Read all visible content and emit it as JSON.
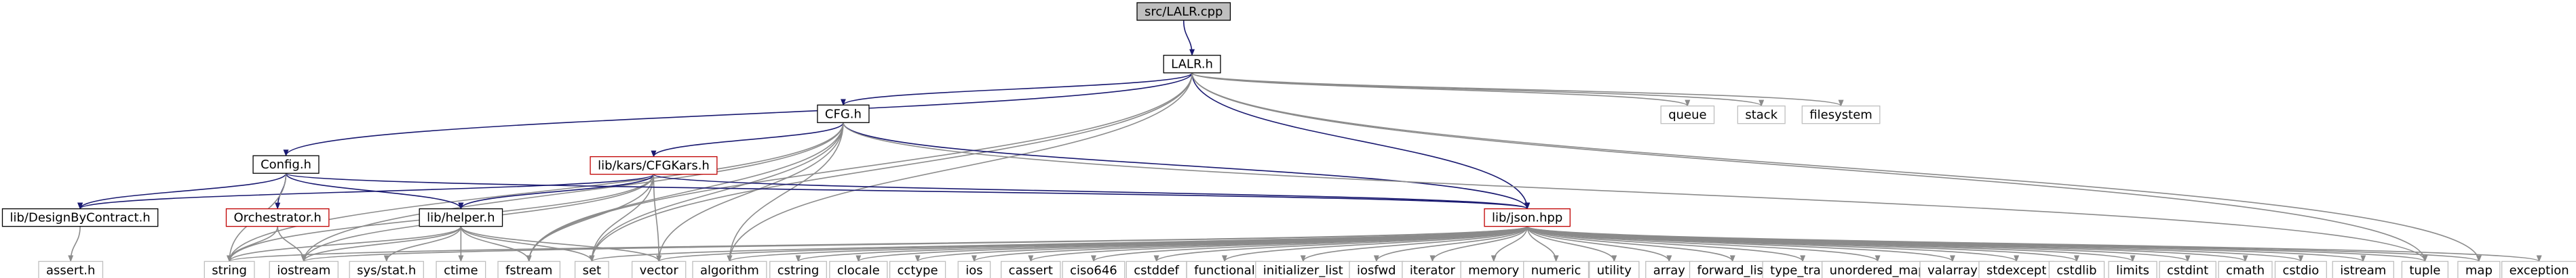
{
  "colors": {
    "root_fill": "#bfbfbf",
    "node_fill": "#ffffff",
    "node_border": "#000000",
    "missing_border": "#c00000",
    "sys_border": "#bfbfbf",
    "project_edge": "#191970",
    "system_edge": "#8b8b8b"
  },
  "nodes": [
    {
      "id": "src_lalr_cpp",
      "label": "src/LALR.cpp",
      "kind": "root"
    },
    {
      "id": "lalr_h",
      "label": "LALR.h",
      "kind": "project"
    },
    {
      "id": "cfg_h",
      "label": "CFG.h",
      "kind": "project"
    },
    {
      "id": "config_h",
      "label": "Config.h",
      "kind": "project"
    },
    {
      "id": "cfgkars_h",
      "label": "lib/kars/CFGKars.h",
      "kind": "missing"
    },
    {
      "id": "designbycontract_h",
      "label": "lib/DesignByContract.h",
      "kind": "project"
    },
    {
      "id": "orchestrator_h",
      "label": "Orchestrator.h",
      "kind": "missing"
    },
    {
      "id": "helper_h",
      "label": "lib/helper.h",
      "kind": "project"
    },
    {
      "id": "json_hpp",
      "label": "lib/json.hpp",
      "kind": "missing"
    },
    {
      "id": "assert_h",
      "label": "assert.h",
      "kind": "system"
    },
    {
      "id": "queue",
      "label": "queue",
      "kind": "system"
    },
    {
      "id": "stack",
      "label": "stack",
      "kind": "system"
    },
    {
      "id": "filesystem",
      "label": "filesystem",
      "kind": "system"
    },
    {
      "id": "string",
      "label": "string",
      "kind": "system"
    },
    {
      "id": "iostream",
      "label": "iostream",
      "kind": "system"
    },
    {
      "id": "sys_stat_h",
      "label": "sys/stat.h",
      "kind": "system"
    },
    {
      "id": "ctime",
      "label": "ctime",
      "kind": "system"
    },
    {
      "id": "fstream",
      "label": "fstream",
      "kind": "system"
    },
    {
      "id": "set",
      "label": "set",
      "kind": "system"
    },
    {
      "id": "vector",
      "label": "vector",
      "kind": "system"
    },
    {
      "id": "algorithm",
      "label": "algorithm",
      "kind": "system"
    },
    {
      "id": "cstring",
      "label": "cstring",
      "kind": "system"
    },
    {
      "id": "clocale",
      "label": "clocale",
      "kind": "system"
    },
    {
      "id": "cctype",
      "label": "cctype",
      "kind": "system"
    },
    {
      "id": "ios",
      "label": "ios",
      "kind": "system"
    },
    {
      "id": "cassert",
      "label": "cassert",
      "kind": "system"
    },
    {
      "id": "ciso646",
      "label": "ciso646",
      "kind": "system"
    },
    {
      "id": "cstddef",
      "label": "cstddef",
      "kind": "system"
    },
    {
      "id": "functional",
      "label": "functional",
      "kind": "system"
    },
    {
      "id": "initializer_list",
      "label": "initializer_list",
      "kind": "system"
    },
    {
      "id": "iosfwd",
      "label": "iosfwd",
      "kind": "system"
    },
    {
      "id": "iterator",
      "label": "iterator",
      "kind": "system"
    },
    {
      "id": "memory",
      "label": "memory",
      "kind": "system"
    },
    {
      "id": "numeric",
      "label": "numeric",
      "kind": "system"
    },
    {
      "id": "utility",
      "label": "utility",
      "kind": "system"
    },
    {
      "id": "array",
      "label": "array",
      "kind": "system"
    },
    {
      "id": "forward_list",
      "label": "forward_list",
      "kind": "system"
    },
    {
      "id": "type_traits",
      "label": "type_traits",
      "kind": "system"
    },
    {
      "id": "unordered_map",
      "label": "unordered_map",
      "kind": "system"
    },
    {
      "id": "valarray",
      "label": "valarray",
      "kind": "system"
    },
    {
      "id": "stdexcept",
      "label": "stdexcept",
      "kind": "system"
    },
    {
      "id": "cstdlib",
      "label": "cstdlib",
      "kind": "system"
    },
    {
      "id": "limits",
      "label": "limits",
      "kind": "system"
    },
    {
      "id": "cstdint",
      "label": "cstdint",
      "kind": "system"
    },
    {
      "id": "cmath",
      "label": "cmath",
      "kind": "system"
    },
    {
      "id": "cstdio",
      "label": "cstdio",
      "kind": "system"
    },
    {
      "id": "istream",
      "label": "istream",
      "kind": "system"
    },
    {
      "id": "tuple",
      "label": "tuple",
      "kind": "system"
    },
    {
      "id": "map",
      "label": "map",
      "kind": "system"
    },
    {
      "id": "exception",
      "label": "exception",
      "kind": "system"
    }
  ],
  "edges": [
    [
      "src_lalr_cpp",
      "lalr_h"
    ],
    [
      "lalr_h",
      "cfg_h"
    ],
    [
      "lalr_h",
      "config_h"
    ],
    [
      "lalr_h",
      "json_hpp"
    ],
    [
      "lalr_h",
      "queue"
    ],
    [
      "lalr_h",
      "stack"
    ],
    [
      "lalr_h",
      "filesystem"
    ],
    [
      "lalr_h",
      "fstream"
    ],
    [
      "lalr_h",
      "set"
    ],
    [
      "lalr_h",
      "algorithm"
    ],
    [
      "lalr_h",
      "tuple"
    ],
    [
      "lalr_h",
      "map"
    ],
    [
      "cfg_h",
      "cfgkars_h"
    ],
    [
      "cfg_h",
      "json_hpp"
    ],
    [
      "cfg_h",
      "string"
    ],
    [
      "cfg_h",
      "iostream"
    ],
    [
      "cfg_h",
      "fstream"
    ],
    [
      "cfg_h",
      "set"
    ],
    [
      "cfg_h",
      "vector"
    ],
    [
      "cfg_h",
      "algorithm"
    ],
    [
      "cfg_h",
      "tuple"
    ],
    [
      "cfgkars_h",
      "designbycontract_h"
    ],
    [
      "cfgkars_h",
      "helper_h"
    ],
    [
      "cfgkars_h",
      "json_hpp"
    ],
    [
      "cfgkars_h",
      "string"
    ],
    [
      "cfgkars_h",
      "iostream"
    ],
    [
      "cfgkars_h",
      "fstream"
    ],
    [
      "cfgkars_h",
      "set"
    ],
    [
      "cfgkars_h",
      "vector"
    ],
    [
      "config_h",
      "designbycontract_h"
    ],
    [
      "config_h",
      "orchestrator_h"
    ],
    [
      "config_h",
      "helper_h"
    ],
    [
      "config_h",
      "json_hpp"
    ],
    [
      "config_h",
      "string"
    ],
    [
      "designbycontract_h",
      "assert_h"
    ],
    [
      "orchestrator_h",
      "string"
    ],
    [
      "orchestrator_h",
      "iostream"
    ],
    [
      "helper_h",
      "string"
    ],
    [
      "helper_h",
      "iostream"
    ],
    [
      "helper_h",
      "sys_stat_h"
    ],
    [
      "helper_h",
      "ctime"
    ],
    [
      "helper_h",
      "fstream"
    ],
    [
      "helper_h",
      "set"
    ],
    [
      "helper_h",
      "vector"
    ],
    [
      "json_hpp",
      "string"
    ],
    [
      "json_hpp",
      "iostream"
    ],
    [
      "json_hpp",
      "set"
    ],
    [
      "json_hpp",
      "vector"
    ],
    [
      "json_hpp",
      "algorithm"
    ],
    [
      "json_hpp",
      "cstring"
    ],
    [
      "json_hpp",
      "clocale"
    ],
    [
      "json_hpp",
      "cctype"
    ],
    [
      "json_hpp",
      "ios"
    ],
    [
      "json_hpp",
      "cassert"
    ],
    [
      "json_hpp",
      "ciso646"
    ],
    [
      "json_hpp",
      "cstddef"
    ],
    [
      "json_hpp",
      "functional"
    ],
    [
      "json_hpp",
      "initializer_list"
    ],
    [
      "json_hpp",
      "iosfwd"
    ],
    [
      "json_hpp",
      "iterator"
    ],
    [
      "json_hpp",
      "memory"
    ],
    [
      "json_hpp",
      "numeric"
    ],
    [
      "json_hpp",
      "utility"
    ],
    [
      "json_hpp",
      "array"
    ],
    [
      "json_hpp",
      "forward_list"
    ],
    [
      "json_hpp",
      "type_traits"
    ],
    [
      "json_hpp",
      "unordered_map"
    ],
    [
      "json_hpp",
      "valarray"
    ],
    [
      "json_hpp",
      "stdexcept"
    ],
    [
      "json_hpp",
      "cstdlib"
    ],
    [
      "json_hpp",
      "limits"
    ],
    [
      "json_hpp",
      "cstdint"
    ],
    [
      "json_hpp",
      "cmath"
    ],
    [
      "json_hpp",
      "cstdio"
    ],
    [
      "json_hpp",
      "istream"
    ],
    [
      "json_hpp",
      "tuple"
    ],
    [
      "json_hpp",
      "map"
    ],
    [
      "json_hpp",
      "exception"
    ]
  ]
}
